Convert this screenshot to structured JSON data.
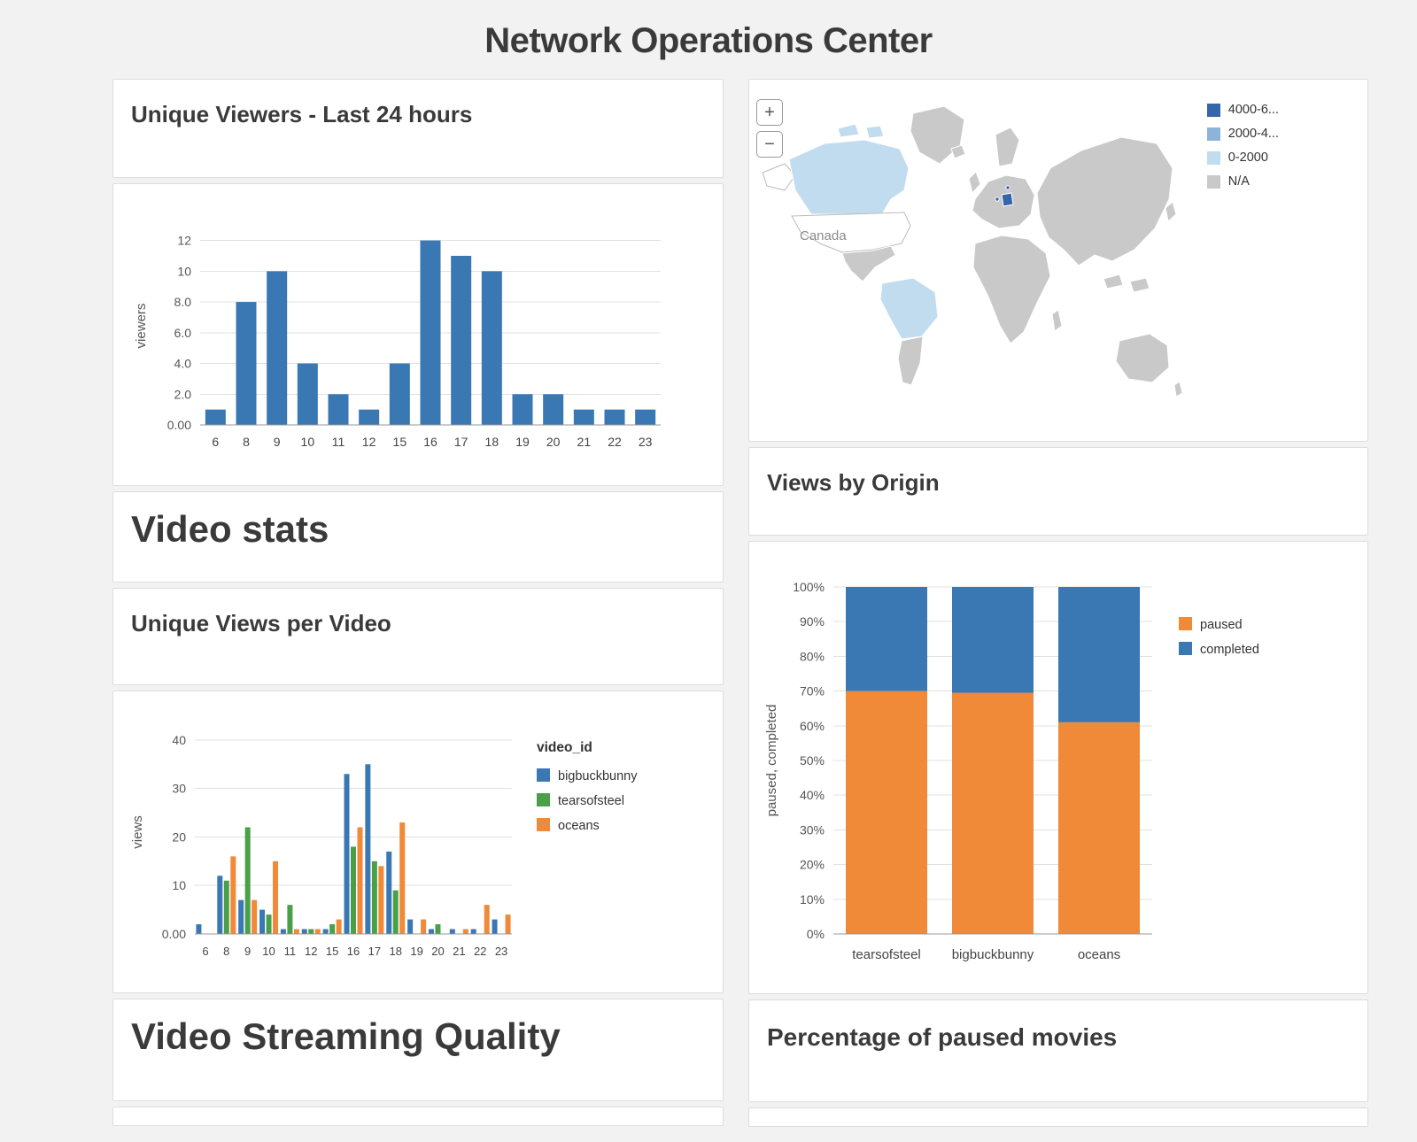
{
  "page": {
    "title": "Network Operations Center"
  },
  "panels": {
    "unique_viewers": {
      "title": "Unique Viewers - Last 24 hours"
    },
    "video_stats": {
      "title": "Video stats"
    },
    "views_per_video": {
      "title": "Unique Views per Video"
    },
    "streaming_quality": {
      "title": "Video Streaming Quality"
    },
    "views_by_origin": {
      "title": "Views by Origin"
    },
    "paused_movies": {
      "title": "Percentage of paused movies"
    }
  },
  "map": {
    "zoom_in": "+",
    "zoom_out": "−",
    "country_label": "Canada",
    "colors": {
      "high": "#3566ab",
      "mid": "#8cb4d9",
      "low": "#c2dcef",
      "na": "#c9c9c9",
      "usa": "#ffffff"
    },
    "legend": [
      {
        "label": "4000-6...",
        "color": "#3566ab"
      },
      {
        "label": "2000-4...",
        "color": "#8cb4d9"
      },
      {
        "label": "0-2000",
        "color": "#c2dcef"
      },
      {
        "label": "N/A",
        "color": "#c9c9c9"
      }
    ]
  },
  "chart_data": [
    {
      "id": "unique_viewers",
      "type": "bar",
      "title": "Unique Viewers - Last 24 hours",
      "categories": [
        "6",
        "8",
        "9",
        "10",
        "11",
        "12",
        "15",
        "16",
        "17",
        "18",
        "19",
        "20",
        "21",
        "22",
        "23"
      ],
      "values": [
        1,
        8,
        10,
        4,
        2,
        1,
        4,
        12,
        11,
        10,
        2,
        2,
        1,
        1,
        1
      ],
      "color": "#3a78b4",
      "xlabel": "",
      "ylabel": "viewers",
      "yticks": [
        0,
        2,
        4,
        6,
        8,
        10,
        12
      ],
      "ytick_labels": [
        "0.00",
        "2.0",
        "4.0",
        "6.0",
        "8.0",
        "10",
        "12"
      ],
      "ylim": [
        0,
        12.9
      ],
      "grid": true,
      "legend_position": "none"
    },
    {
      "id": "views_per_video",
      "type": "bar",
      "grouped": true,
      "title": "Unique Views per Video",
      "categories": [
        "6",
        "8",
        "9",
        "10",
        "11",
        "12",
        "15",
        "16",
        "17",
        "18",
        "19",
        "20",
        "21",
        "22",
        "23"
      ],
      "series": [
        {
          "name": "bigbuckbunny",
          "color": "#3a78b4",
          "values": [
            2,
            12,
            7,
            5,
            1,
            1,
            1,
            33,
            35,
            17,
            3,
            1,
            1,
            1,
            3
          ]
        },
        {
          "name": "tearsofsteel",
          "color": "#4aa049",
          "values": [
            0,
            11,
            22,
            4,
            6,
            1,
            2,
            18,
            15,
            9,
            0,
            2,
            0,
            0,
            0
          ]
        },
        {
          "name": "oceans",
          "color": "#f08a38",
          "values": [
            0,
            16,
            7,
            15,
            1,
            1,
            3,
            22,
            14,
            23,
            3,
            0,
            1,
            6,
            4
          ]
        }
      ],
      "legend_title": "video_id",
      "legend_position": "right",
      "xlabel": "",
      "ylabel": "views",
      "yticks": [
        0,
        10,
        20,
        30,
        40
      ],
      "ytick_labels": [
        "0.00",
        "10",
        "20",
        "30",
        "40"
      ],
      "ylim": [
        0,
        42
      ],
      "grid": true
    },
    {
      "id": "paused_movies",
      "type": "stacked_percent_bar",
      "title": "Percentage of paused movies",
      "categories": [
        "tearsofsteel",
        "bigbuckbunny",
        "oceans"
      ],
      "series": [
        {
          "name": "paused",
          "color": "#f08a38",
          "values": [
            70,
            69.5,
            61
          ]
        },
        {
          "name": "completed",
          "color": "#3a78b4",
          "values": [
            30,
            30.5,
            39
          ]
        }
      ],
      "legend_position": "right",
      "xlabel": "",
      "ylabel": "paused, completed",
      "yticks": [
        0,
        10,
        20,
        30,
        40,
        50,
        60,
        70,
        80,
        90,
        100
      ],
      "ytick_labels": [
        "0%",
        "10%",
        "20%",
        "30%",
        "40%",
        "50%",
        "60%",
        "70%",
        "80%",
        "90%",
        "100%"
      ],
      "ylim": [
        0,
        100
      ],
      "grid": true
    }
  ]
}
